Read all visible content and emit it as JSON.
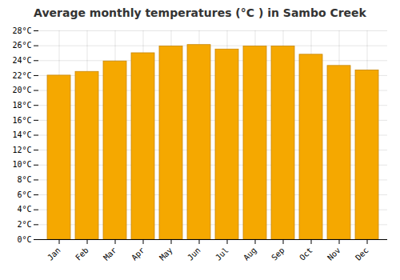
{
  "chart_data": {
    "type": "bar",
    "title": "Average monthly temperatures (°C ) in Sambo Creek",
    "categories": [
      "Jan",
      "Feb",
      "Mar",
      "Apr",
      "May",
      "Jun",
      "Jul",
      "Aug",
      "Sep",
      "Oct",
      "Nov",
      "Dec"
    ],
    "values": [
      22.0,
      22.5,
      23.9,
      25.0,
      25.9,
      26.1,
      25.5,
      25.9,
      25.9,
      24.8,
      23.3,
      22.7
    ],
    "color": "#F5A800",
    "ylim": [
      0,
      28
    ],
    "yticks": [
      {
        "value": 0,
        "label": "0°C"
      },
      {
        "value": 2,
        "label": "2°C"
      },
      {
        "value": 4,
        "label": "4°C"
      },
      {
        "value": 6,
        "label": "6°C"
      },
      {
        "value": 8,
        "label": "8°C"
      },
      {
        "value": 10,
        "label": "10°C"
      },
      {
        "value": 12,
        "label": "12°C"
      },
      {
        "value": 14,
        "label": "14°C"
      },
      {
        "value": 16,
        "label": "16°C"
      },
      {
        "value": 18,
        "label": "18°C"
      },
      {
        "value": 20,
        "label": "20°C"
      },
      {
        "value": 22,
        "label": "22°C"
      },
      {
        "value": 24,
        "label": "24°C"
      },
      {
        "value": 26,
        "label": "26°C"
      },
      {
        "value": 28,
        "label": "28°C"
      }
    ],
    "grid": true
  }
}
